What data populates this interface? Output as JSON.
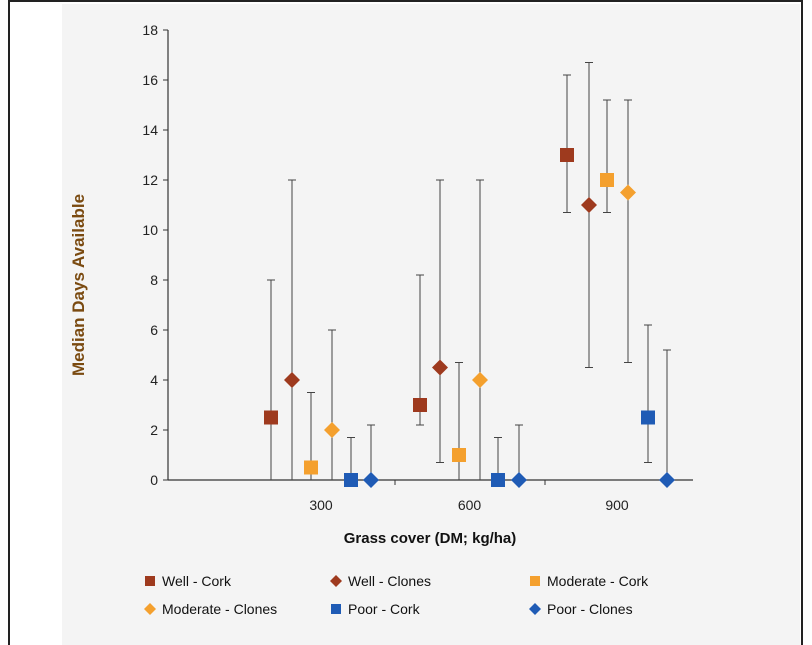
{
  "chart_data": {
    "type": "scatter",
    "title": "",
    "xlabel": "Grass cover (DM; kg/ha)",
    "ylabel": "Median Days Available",
    "categories": [
      "300",
      "600",
      "900"
    ],
    "ylim": [
      0,
      18
    ],
    "yticks": [
      0,
      2,
      4,
      6,
      8,
      10,
      12,
      14,
      16,
      18
    ],
    "grid": false,
    "legend_position": "bottom",
    "series": [
      {
        "name": "Well - Cork",
        "marker": "square",
        "color": "#9e3a1e",
        "values": [
          2.5,
          3,
          13
        ],
        "err_low": [
          0,
          2.2,
          10.7
        ],
        "err_high": [
          8,
          8.2,
          16.2
        ]
      },
      {
        "name": "Well - Clones",
        "marker": "diamond",
        "color": "#9e3a1e",
        "values": [
          4,
          4.5,
          11
        ],
        "err_low": [
          0,
          0.7,
          4.5
        ],
        "err_high": [
          12,
          12,
          16.7
        ]
      },
      {
        "name": "Moderate - Cork",
        "marker": "square",
        "color": "#f4a02e",
        "values": [
          0.5,
          1,
          12
        ],
        "err_low": [
          0,
          0,
          10.7
        ],
        "err_high": [
          3.5,
          4.7,
          15.2
        ]
      },
      {
        "name": "Moderate - Clones",
        "marker": "diamond",
        "color": "#f4a02e",
        "values": [
          2,
          4,
          11.5
        ],
        "err_low": [
          0,
          0,
          4.7
        ],
        "err_high": [
          6,
          12,
          15.2
        ]
      },
      {
        "name": "Poor - Cork",
        "marker": "square",
        "color": "#1f5bb5",
        "values": [
          0,
          0,
          2.5
        ],
        "err_low": [
          0,
          0,
          0.7
        ],
        "err_high": [
          1.7,
          1.7,
          6.2
        ]
      },
      {
        "name": "Poor - Clones",
        "marker": "diamond",
        "color": "#1f5bb5",
        "values": [
          0,
          0,
          0
        ],
        "err_low": [
          0,
          0,
          0
        ],
        "err_high": [
          2.2,
          2.2,
          5.2
        ]
      }
    ]
  }
}
